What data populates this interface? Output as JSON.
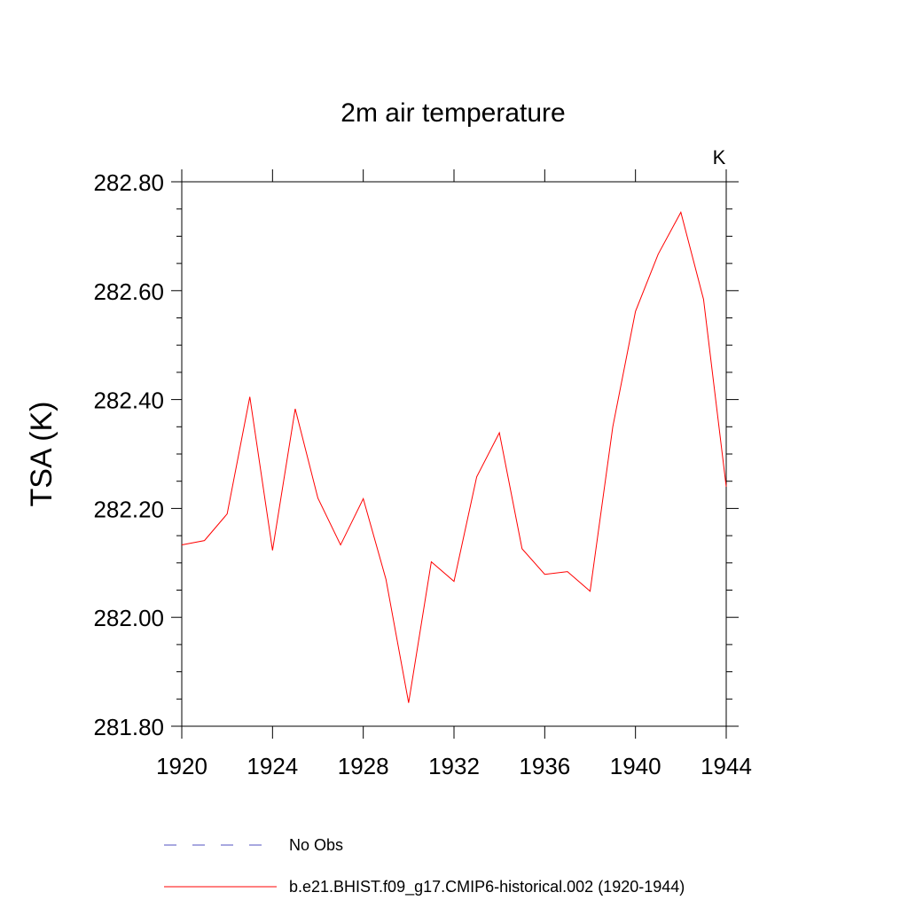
{
  "chart_data": {
    "type": "line",
    "title": "2m air temperature",
    "unit_label": "K",
    "ylabel": "TSA  (K)",
    "xlabel": "",
    "xlim": [
      1920,
      1944
    ],
    "ylim": [
      281.8,
      282.8
    ],
    "x_ticks": [
      1920,
      1924,
      1928,
      1932,
      1936,
      1940,
      1944
    ],
    "y_ticks": [
      "281.80",
      "282.00",
      "282.20",
      "282.40",
      "282.60",
      "282.80"
    ],
    "grid": false,
    "legend_position": "bottom",
    "series": [
      {
        "name": "b.e21.BHIST.f09_g17.CMIP6-historical.002 (1920-1944)",
        "color": "#ff0000",
        "style": "solid",
        "x": [
          1920,
          1921,
          1922,
          1923,
          1924,
          1925,
          1926,
          1927,
          1928,
          1929,
          1930,
          1931,
          1932,
          1933,
          1934,
          1935,
          1936,
          1937,
          1938,
          1939,
          1940,
          1941,
          1942,
          1943,
          1944
        ],
        "y": [
          282.133,
          282.141,
          282.19,
          282.405,
          282.123,
          282.383,
          282.219,
          282.133,
          282.218,
          282.07,
          281.843,
          282.102,
          282.066,
          282.258,
          282.339,
          282.126,
          282.079,
          282.084,
          282.048,
          282.35,
          282.562,
          282.667,
          282.744,
          282.584,
          282.24
        ]
      }
    ],
    "legend": [
      {
        "label": "No Obs",
        "color": "#5050c0",
        "style": "dashed"
      },
      {
        "label": "b.e21.BHIST.f09_g17.CMIP6-historical.002 (1920-1944)",
        "color": "#ff0000",
        "style": "solid"
      }
    ]
  }
}
